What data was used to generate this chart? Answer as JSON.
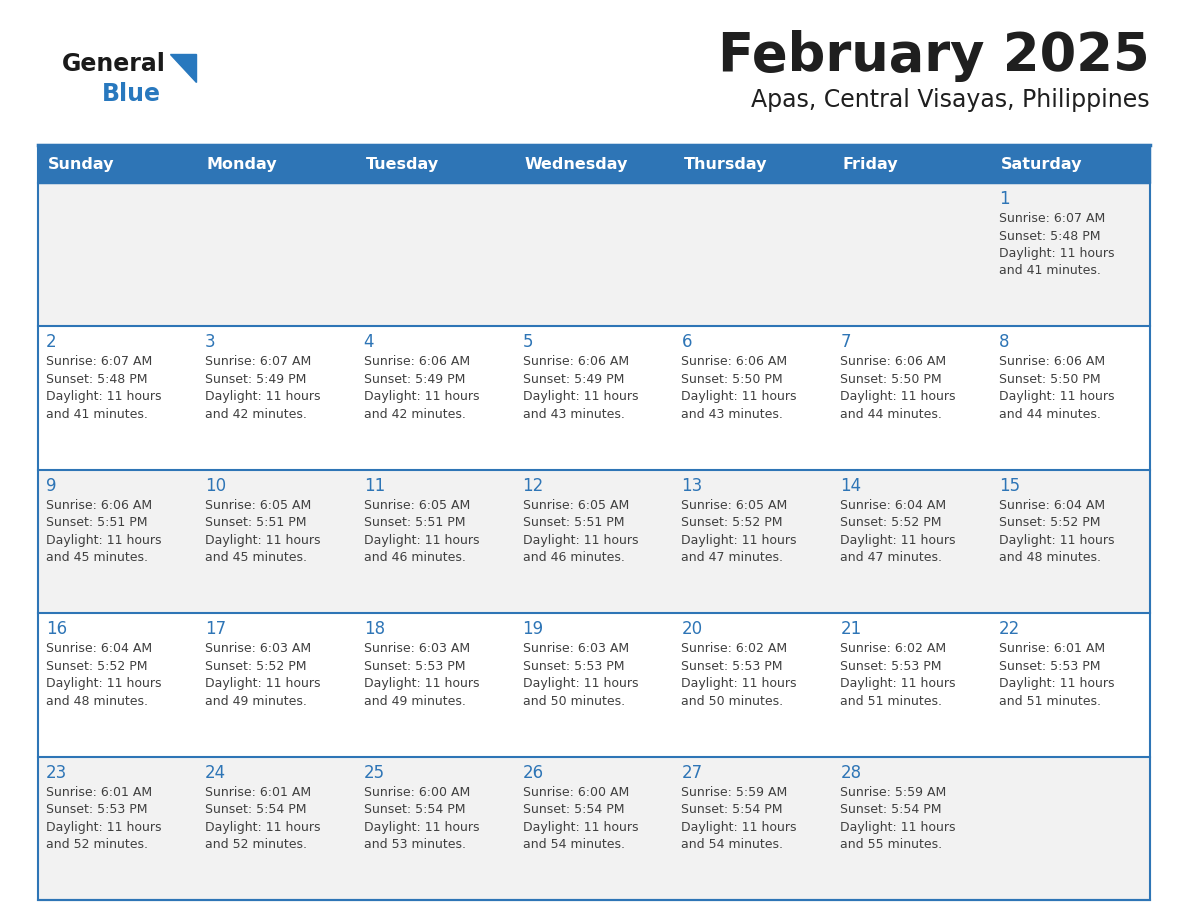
{
  "title": "February 2025",
  "subtitle": "Apas, Central Visayas, Philippines",
  "header_bg": "#2E75B6",
  "header_text_color": "#FFFFFF",
  "cell_bg_light": "#F2F2F2",
  "cell_bg_white": "#FFFFFF",
  "day_headers": [
    "Sunday",
    "Monday",
    "Tuesday",
    "Wednesday",
    "Thursday",
    "Friday",
    "Saturday"
  ],
  "title_color": "#1F1F1F",
  "subtitle_color": "#1F1F1F",
  "day_num_color": "#2E75B6",
  "cell_text_color": "#404040",
  "logo_general_color": "#1A1A1A",
  "logo_blue_color": "#2878BE",
  "border_color": "#2E75B6",
  "weeks": [
    [
      {
        "day": null,
        "sunrise": null,
        "sunset": null,
        "daylight": null
      },
      {
        "day": null,
        "sunrise": null,
        "sunset": null,
        "daylight": null
      },
      {
        "day": null,
        "sunrise": null,
        "sunset": null,
        "daylight": null
      },
      {
        "day": null,
        "sunrise": null,
        "sunset": null,
        "daylight": null
      },
      {
        "day": null,
        "sunrise": null,
        "sunset": null,
        "daylight": null
      },
      {
        "day": null,
        "sunrise": null,
        "sunset": null,
        "daylight": null
      },
      {
        "day": 1,
        "sunrise": "6:07 AM",
        "sunset": "5:48 PM",
        "daylight": "11 hours and 41 minutes"
      }
    ],
    [
      {
        "day": 2,
        "sunrise": "6:07 AM",
        "sunset": "5:48 PM",
        "daylight": "11 hours and 41 minutes"
      },
      {
        "day": 3,
        "sunrise": "6:07 AM",
        "sunset": "5:49 PM",
        "daylight": "11 hours and 42 minutes"
      },
      {
        "day": 4,
        "sunrise": "6:06 AM",
        "sunset": "5:49 PM",
        "daylight": "11 hours and 42 minutes"
      },
      {
        "day": 5,
        "sunrise": "6:06 AM",
        "sunset": "5:49 PM",
        "daylight": "11 hours and 43 minutes"
      },
      {
        "day": 6,
        "sunrise": "6:06 AM",
        "sunset": "5:50 PM",
        "daylight": "11 hours and 43 minutes"
      },
      {
        "day": 7,
        "sunrise": "6:06 AM",
        "sunset": "5:50 PM",
        "daylight": "11 hours and 44 minutes"
      },
      {
        "day": 8,
        "sunrise": "6:06 AM",
        "sunset": "5:50 PM",
        "daylight": "11 hours and 44 minutes"
      }
    ],
    [
      {
        "day": 9,
        "sunrise": "6:06 AM",
        "sunset": "5:51 PM",
        "daylight": "11 hours and 45 minutes"
      },
      {
        "day": 10,
        "sunrise": "6:05 AM",
        "sunset": "5:51 PM",
        "daylight": "11 hours and 45 minutes"
      },
      {
        "day": 11,
        "sunrise": "6:05 AM",
        "sunset": "5:51 PM",
        "daylight": "11 hours and 46 minutes"
      },
      {
        "day": 12,
        "sunrise": "6:05 AM",
        "sunset": "5:51 PM",
        "daylight": "11 hours and 46 minutes"
      },
      {
        "day": 13,
        "sunrise": "6:05 AM",
        "sunset": "5:52 PM",
        "daylight": "11 hours and 47 minutes"
      },
      {
        "day": 14,
        "sunrise": "6:04 AM",
        "sunset": "5:52 PM",
        "daylight": "11 hours and 47 minutes"
      },
      {
        "day": 15,
        "sunrise": "6:04 AM",
        "sunset": "5:52 PM",
        "daylight": "11 hours and 48 minutes"
      }
    ],
    [
      {
        "day": 16,
        "sunrise": "6:04 AM",
        "sunset": "5:52 PM",
        "daylight": "11 hours and 48 minutes"
      },
      {
        "day": 17,
        "sunrise": "6:03 AM",
        "sunset": "5:52 PM",
        "daylight": "11 hours and 49 minutes"
      },
      {
        "day": 18,
        "sunrise": "6:03 AM",
        "sunset": "5:53 PM",
        "daylight": "11 hours and 49 minutes"
      },
      {
        "day": 19,
        "sunrise": "6:03 AM",
        "sunset": "5:53 PM",
        "daylight": "11 hours and 50 minutes"
      },
      {
        "day": 20,
        "sunrise": "6:02 AM",
        "sunset": "5:53 PM",
        "daylight": "11 hours and 50 minutes"
      },
      {
        "day": 21,
        "sunrise": "6:02 AM",
        "sunset": "5:53 PM",
        "daylight": "11 hours and 51 minutes"
      },
      {
        "day": 22,
        "sunrise": "6:01 AM",
        "sunset": "5:53 PM",
        "daylight": "11 hours and 51 minutes"
      }
    ],
    [
      {
        "day": 23,
        "sunrise": "6:01 AM",
        "sunset": "5:53 PM",
        "daylight": "11 hours and 52 minutes"
      },
      {
        "day": 24,
        "sunrise": "6:01 AM",
        "sunset": "5:54 PM",
        "daylight": "11 hours and 52 minutes"
      },
      {
        "day": 25,
        "sunrise": "6:00 AM",
        "sunset": "5:54 PM",
        "daylight": "11 hours and 53 minutes"
      },
      {
        "day": 26,
        "sunrise": "6:00 AM",
        "sunset": "5:54 PM",
        "daylight": "11 hours and 54 minutes"
      },
      {
        "day": 27,
        "sunrise": "5:59 AM",
        "sunset": "5:54 PM",
        "daylight": "11 hours and 54 minutes"
      },
      {
        "day": 28,
        "sunrise": "5:59 AM",
        "sunset": "5:54 PM",
        "daylight": "11 hours and 55 minutes"
      },
      {
        "day": null,
        "sunrise": null,
        "sunset": null,
        "daylight": null
      }
    ]
  ]
}
